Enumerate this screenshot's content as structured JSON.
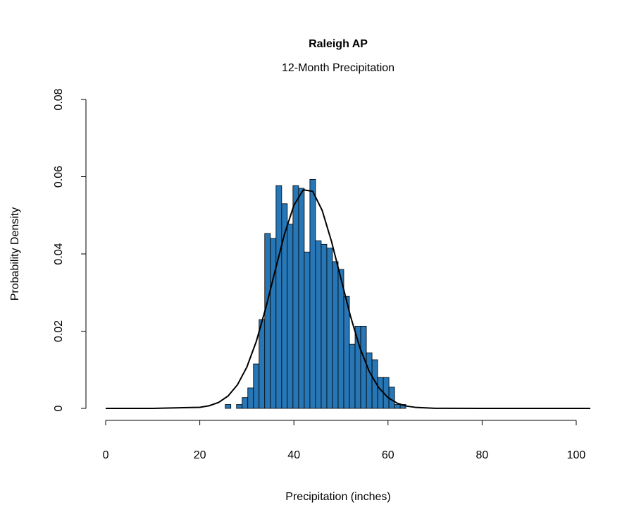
{
  "chart_data": {
    "type": "histogram",
    "title": "Raleigh  AP",
    "subtitle": "12-Month Precipitation",
    "x_label": "Precipitation (inches)",
    "y_label": "Probability Density",
    "bins": [
      25.4,
      26.6,
      27.8,
      29.0,
      30.2,
      31.4,
      32.6,
      33.8,
      35.0,
      36.2,
      37.4,
      38.6,
      39.8,
      41.0,
      42.2,
      43.4,
      44.6,
      45.8,
      47.0,
      48.2,
      49.4,
      50.6,
      51.8,
      53.0,
      54.2,
      55.4,
      56.6,
      57.8,
      59.0,
      60.2,
      61.4,
      62.6,
      63.8
    ],
    "values": [
      0.001,
      0,
      0.001,
      0.0028,
      0.0053,
      0.0115,
      0.023,
      0.0453,
      0.044,
      0.0577,
      0.053,
      0.0477,
      0.0577,
      0.057,
      0.0405,
      0.0593,
      0.0434,
      0.0425,
      0.0415,
      0.038,
      0.036,
      0.029,
      0.0166,
      0.0213,
      0.0213,
      0.0144,
      0.0126,
      0.008,
      0.008,
      0.0055,
      0.001,
      0.001
    ],
    "color": "#2776b6",
    "curve": {
      "color": "#000000",
      "x": [
        0,
        10,
        20,
        22,
        24,
        26,
        28,
        30,
        32,
        34,
        36,
        38,
        40,
        42,
        44,
        46,
        48,
        50,
        52,
        54,
        56,
        58,
        60,
        62,
        64,
        66,
        70,
        80,
        103
      ],
      "values": [
        0,
        0,
        0.00028,
        0.00069,
        0.00154,
        0.0032,
        0.0061,
        0.0107,
        0.0173,
        0.0259,
        0.0356,
        0.0451,
        0.0526,
        0.0566,
        0.0562,
        0.0513,
        0.0432,
        0.0336,
        0.024,
        0.0158,
        0.0096,
        0.0054,
        0.0028,
        0.0013,
        0.00058,
        0.00024,
        2e-05,
        0,
        0
      ]
    },
    "xlim": [
      -4,
      104
    ],
    "ylim": [
      0,
      0.08
    ],
    "xticks": [
      0,
      20,
      40,
      60,
      80,
      100
    ],
    "yticks": [
      0,
      0.02,
      0.04,
      0.06,
      0.08
    ]
  }
}
